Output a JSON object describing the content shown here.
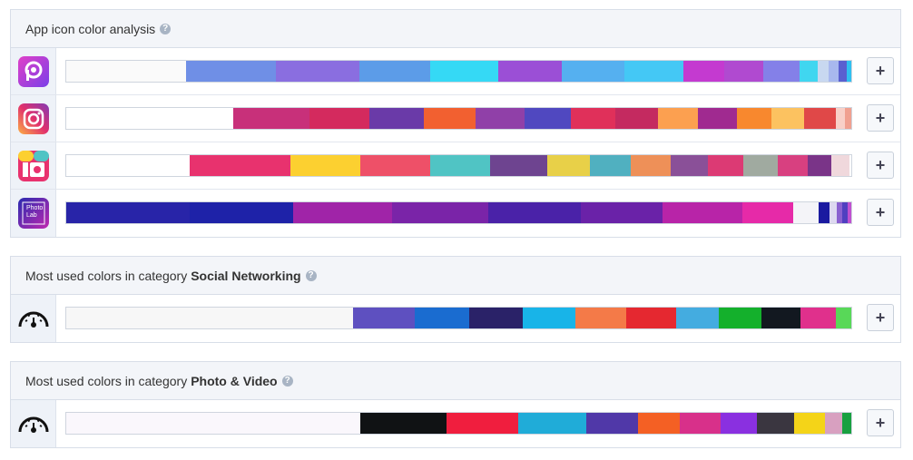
{
  "add_button": "+",
  "help_icon": "?",
  "sections": [
    {
      "title": "App icon color analysis",
      "rows": [
        {
          "segments": [
            {
              "color": "#fafafa",
              "value": 15.3
            },
            {
              "color": "#6f8fe6",
              "value": 11.4
            },
            {
              "color": "#8a6ee0",
              "value": 10.6
            },
            {
              "color": "#5c9ce8",
              "value": 9.1
            },
            {
              "color": "#35d9f5",
              "value": 8.6
            },
            {
              "color": "#9b4fd6",
              "value": 8.1
            },
            {
              "color": "#55b0f0",
              "value": 8.0
            },
            {
              "color": "#44c8f5",
              "value": 7.5
            },
            {
              "color": "#c43ad0",
              "value": 5.2
            },
            {
              "color": "#b04ad0",
              "value": 5.0
            },
            {
              "color": "#8480e8",
              "value": 4.6
            },
            {
              "color": "#40d6f0",
              "value": 2.3
            },
            {
              "color": "#c8d8f0",
              "value": 1.4
            },
            {
              "color": "#a8b8ee",
              "value": 1.3
            },
            {
              "color": "#5a60d0",
              "value": 1.0
            },
            {
              "color": "#30c0f0",
              "value": 0.6
            }
          ]
        },
        {
          "segments": [
            {
              "color": "#ffffff",
              "value": 21.3
            },
            {
              "color": "#c8307a",
              "value": 9.7
            },
            {
              "color": "#d42a5e",
              "value": 7.6
            },
            {
              "color": "#6a3aa8",
              "value": 6.9
            },
            {
              "color": "#f26030",
              "value": 6.7
            },
            {
              "color": "#9040a8",
              "value": 6.2
            },
            {
              "color": "#5048c0",
              "value": 5.9
            },
            {
              "color": "#e0305a",
              "value": 5.7
            },
            {
              "color": "#c42a60",
              "value": 5.4
            },
            {
              "color": "#fca050",
              "value": 5.1
            },
            {
              "color": "#a02a90",
              "value": 4.9
            },
            {
              "color": "#f8882e",
              "value": 4.4
            },
            {
              "color": "#fcc260",
              "value": 4.2
            },
            {
              "color": "#e04848",
              "value": 4.0
            },
            {
              "color": "#f8d0c8",
              "value": 1.2
            },
            {
              "color": "#f0a090",
              "value": 0.8
            }
          ]
        },
        {
          "segments": [
            {
              "color": "#ffffff",
              "value": 15.7
            },
            {
              "color": "#e8326e",
              "value": 12.9
            },
            {
              "color": "#fcd030",
              "value": 8.9
            },
            {
              "color": "#ee5068",
              "value": 8.9
            },
            {
              "color": "#50c4c4",
              "value": 7.6
            },
            {
              "color": "#6e4490",
              "value": 7.3
            },
            {
              "color": "#e8d048",
              "value": 5.4
            },
            {
              "color": "#50b0c0",
              "value": 5.2
            },
            {
              "color": "#ee9058",
              "value": 5.1
            },
            {
              "color": "#8a5098",
              "value": 4.7
            },
            {
              "color": "#dc3a74",
              "value": 4.5
            },
            {
              "color": "#a0aaa0",
              "value": 4.5
            },
            {
              "color": "#d84080",
              "value": 3.8
            },
            {
              "color": "#7a3488",
              "value": 3.0
            },
            {
              "color": "#f0d8dc",
              "value": 2.3
            }
          ]
        },
        {
          "icon_text": "Photo Lab",
          "segments": [
            {
              "color": "#2824a8",
              "value": 15.7
            },
            {
              "color": "#1e22a8",
              "value": 13.2
            },
            {
              "color": "#a024a8",
              "value": 12.6
            },
            {
              "color": "#7a24a8",
              "value": 12.3
            },
            {
              "color": "#4a22a8",
              "value": 11.7
            },
            {
              "color": "#6a22a8",
              "value": 10.5
            },
            {
              "color": "#b824a8",
              "value": 10.1
            },
            {
              "color": "#e62aa8",
              "value": 6.5
            },
            {
              "color": "#f4f4f8",
              "value": 3.2
            },
            {
              "color": "#1a1aa0",
              "value": 1.4
            },
            {
              "color": "#ddd8f0",
              "value": 0.9
            },
            {
              "color": "#8a60d0",
              "value": 0.7
            },
            {
              "color": "#5040c0",
              "value": 0.7
            },
            {
              "color": "#c050d0",
              "value": 0.6
            }
          ]
        }
      ]
    },
    {
      "title": "Most used colors in category",
      "category": "Social Networking",
      "rows": [
        {
          "segments": [
            {
              "color": "#f7f7f7",
              "value": 36.5
            },
            {
              "color": "#5e50c0",
              "value": 7.9
            },
            {
              "color": "#1a6cd0",
              "value": 6.9
            },
            {
              "color": "#2a2268",
              "value": 6.9
            },
            {
              "color": "#18b4e8",
              "value": 6.7
            },
            {
              "color": "#f47a48",
              "value": 6.4
            },
            {
              "color": "#e52830",
              "value": 6.4
            },
            {
              "color": "#44ace0",
              "value": 5.4
            },
            {
              "color": "#14b02c",
              "value": 5.5
            },
            {
              "color": "#121820",
              "value": 4.9
            },
            {
              "color": "#e0308c",
              "value": 4.5
            },
            {
              "color": "#58d858",
              "value": 2.0
            }
          ]
        }
      ]
    },
    {
      "title": "Most used colors in category",
      "category": "Photo & Video",
      "rows": [
        {
          "segments": [
            {
              "color": "#faf7fc",
              "value": 37.5
            },
            {
              "color": "#101214",
              "value": 10.9
            },
            {
              "color": "#f01e3e",
              "value": 9.2
            },
            {
              "color": "#20acd8",
              "value": 8.6
            },
            {
              "color": "#5038a8",
              "value": 6.6
            },
            {
              "color": "#f46024",
              "value": 5.3
            },
            {
              "color": "#d8308a",
              "value": 5.2
            },
            {
              "color": "#8a30e0",
              "value": 4.7
            },
            {
              "color": "#3a3640",
              "value": 4.7
            },
            {
              "color": "#f4d418",
              "value": 3.9
            },
            {
              "color": "#d8a0c0",
              "value": 2.2
            },
            {
              "color": "#18a040",
              "value": 1.2
            }
          ]
        }
      ]
    }
  ]
}
